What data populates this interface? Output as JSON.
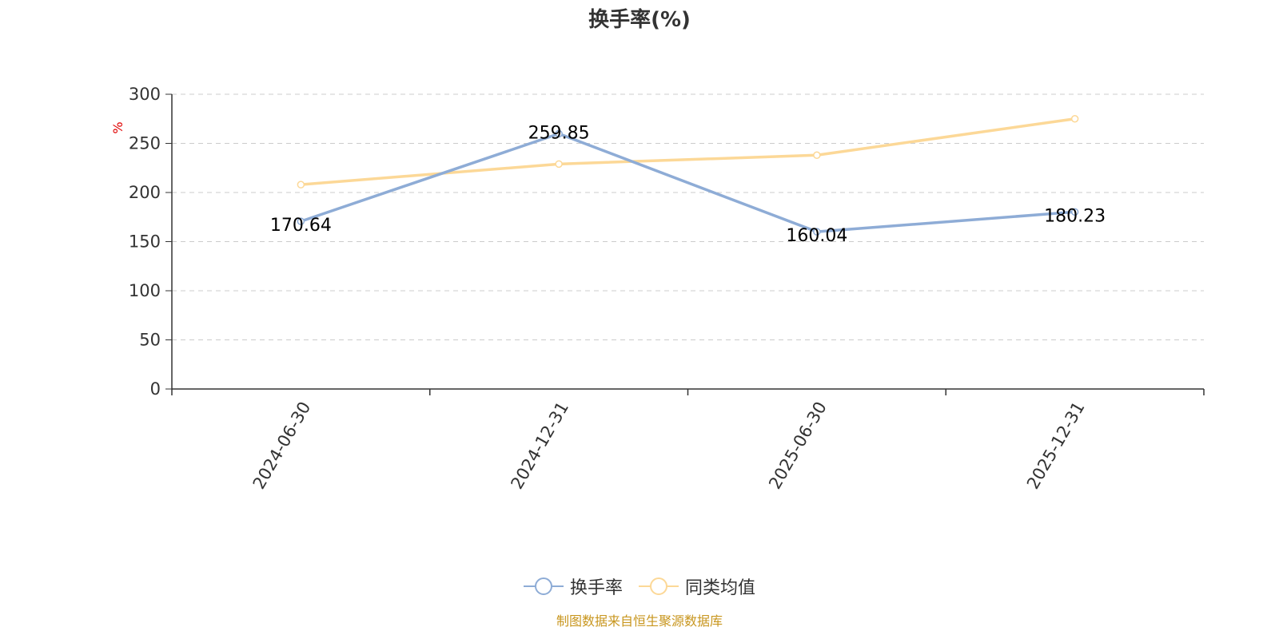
{
  "title": "换手率(%)",
  "source_note": "制图数据来自恒生聚源数据库",
  "colors": {
    "turnover": "#8eacd6",
    "peer_avg": "#fcd897",
    "axis": "#333333",
    "grid": "#cccccc",
    "unit": "#e00000",
    "source": "#c8961e"
  },
  "chart_data": {
    "type": "line",
    "title": "换手率(%)",
    "ylabel": "%",
    "xlabel": "",
    "categories": [
      "2024-06-30",
      "2024-12-31",
      "2025-06-30",
      "2025-12-31"
    ],
    "ylim": [
      0,
      300
    ],
    "yticks": [
      0,
      50,
      100,
      150,
      200,
      250,
      300
    ],
    "grid": true,
    "legend_position": "bottom-center",
    "series": [
      {
        "name": "换手率",
        "values": [
          170.64,
          259.85,
          160.04,
          180.23
        ],
        "labels": [
          "170.64",
          "259.85",
          "160.04",
          "180.23"
        ]
      },
      {
        "name": "同类均值",
        "values": [
          208,
          229,
          238,
          275
        ]
      }
    ]
  }
}
